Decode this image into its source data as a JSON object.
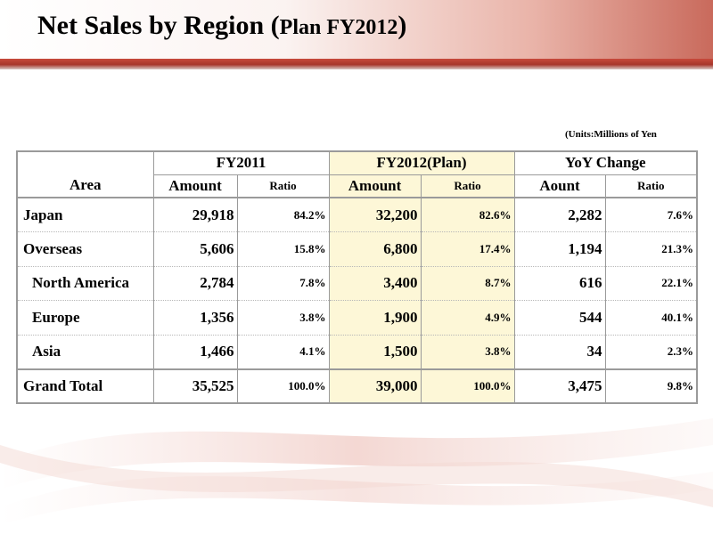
{
  "title": {
    "main": "Net Sales by Region",
    "paren_open": "(",
    "plan": "Plan FY2012",
    "paren_close": ")"
  },
  "units": "(Units:Millions of Yen",
  "table": {
    "area_header": "Area",
    "groups": [
      "FY2011",
      "FY2012(Plan)",
      "YoY Change"
    ],
    "subheaders": [
      "Amount",
      "Ratio",
      "Amount",
      "Ratio",
      "Aount",
      "Ratio"
    ],
    "rows": [
      {
        "area": "Japan",
        "fy2011_amount": "29,918",
        "fy2011_ratio": "84.2%",
        "fy2012_amount": "32,200",
        "fy2012_ratio": "82.6%",
        "yoy_amount": "2,282",
        "yoy_ratio": "7.6%"
      },
      {
        "area": "Overseas",
        "fy2011_amount": "5,606",
        "fy2011_ratio": "15.8%",
        "fy2012_amount": "6,800",
        "fy2012_ratio": "17.4%",
        "yoy_amount": "1,194",
        "yoy_ratio": "21.3%"
      },
      {
        "area": "North America",
        "fy2011_amount": "2,784",
        "fy2011_ratio": "7.8%",
        "fy2012_amount": "3,400",
        "fy2012_ratio": "8.7%",
        "yoy_amount": "616",
        "yoy_ratio": "22.1%"
      },
      {
        "area": "Europe",
        "fy2011_amount": "1,356",
        "fy2011_ratio": "3.8%",
        "fy2012_amount": "1,900",
        "fy2012_ratio": "4.9%",
        "yoy_amount": "544",
        "yoy_ratio": "40.1%"
      },
      {
        "area": "Asia",
        "fy2011_amount": "1,466",
        "fy2011_ratio": "4.1%",
        "fy2012_amount": "1,500",
        "fy2012_ratio": "3.8%",
        "yoy_amount": "34",
        "yoy_ratio": "2.3%"
      },
      {
        "area": "Grand Total",
        "fy2011_amount": "35,525",
        "fy2011_ratio": "100.0%",
        "fy2012_amount": "39,000",
        "fy2012_ratio": "100.0%",
        "yoy_amount": "3,475",
        "yoy_ratio": "9.8%"
      }
    ]
  },
  "colors": {
    "accent": "#b83a2e",
    "highlight": "#fdf7d7",
    "border": "#9a9a9a"
  }
}
